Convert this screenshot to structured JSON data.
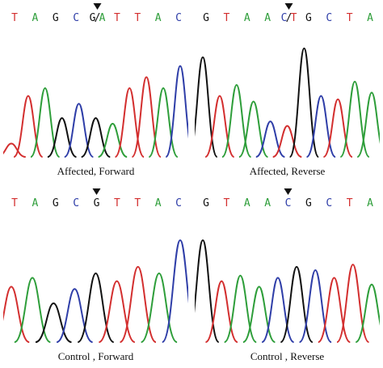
{
  "colors": {
    "A": "#2e9e3a",
    "T": "#d32f2f",
    "G": "#111111",
    "C": "#2f3ea8"
  },
  "panels": [
    {
      "caption": "Affected, Forward",
      "bases": [
        "T",
        "A",
        "G",
        "C",
        "G/A",
        "T",
        "T",
        "A",
        "C"
      ],
      "marker_index": 4,
      "heterozygous": {
        "index": 4,
        "slash": "/"
      },
      "peaks": [
        {
          "base": "T",
          "h": 0.12
        },
        {
          "base": "T",
          "h": 0.55
        },
        {
          "base": "A",
          "h": 0.62
        },
        {
          "base": "G",
          "h": 0.35
        },
        {
          "base": "C",
          "h": 0.48
        },
        {
          "base": "G",
          "h": 0.35
        },
        {
          "base": "A",
          "h": 0.3
        },
        {
          "base": "T",
          "h": 0.62
        },
        {
          "base": "T",
          "h": 0.72
        },
        {
          "base": "A",
          "h": 0.62
        },
        {
          "base": "C",
          "h": 0.82
        }
      ]
    },
    {
      "caption": "Affected, Reverse",
      "bases": [
        "G",
        "T",
        "A",
        "A",
        "C/T",
        "G",
        "C",
        "T",
        "A"
      ],
      "marker_index": 4,
      "heterozygous": {
        "index": 4,
        "slash": "/"
      },
      "peaks": [
        {
          "base": "G",
          "h": 0.9
        },
        {
          "base": "T",
          "h": 0.55
        },
        {
          "base": "A",
          "h": 0.65
        },
        {
          "base": "A",
          "h": 0.5
        },
        {
          "base": "C",
          "h": 0.32
        },
        {
          "base": "T",
          "h": 0.28
        },
        {
          "base": "G",
          "h": 0.98
        },
        {
          "base": "C",
          "h": 0.55
        },
        {
          "base": "T",
          "h": 0.52
        },
        {
          "base": "A",
          "h": 0.68
        },
        {
          "base": "A",
          "h": 0.58
        }
      ]
    },
    {
      "caption": "Control , Forward",
      "bases": [
        "T",
        "A",
        "G",
        "C",
        "G",
        "T",
        "T",
        "A",
        "C"
      ],
      "marker_index": 4,
      "peaks": [
        {
          "base": "T",
          "h": 0.5
        },
        {
          "base": "A",
          "h": 0.58
        },
        {
          "base": "G",
          "h": 0.35
        },
        {
          "base": "C",
          "h": 0.48
        },
        {
          "base": "G",
          "h": 0.62
        },
        {
          "base": "T",
          "h": 0.55
        },
        {
          "base": "T",
          "h": 0.68
        },
        {
          "base": "A",
          "h": 0.62
        },
        {
          "base": "C",
          "h": 0.92
        }
      ]
    },
    {
      "caption": "Control , Reverse",
      "bases": [
        "G",
        "T",
        "A",
        "A",
        "C",
        "G",
        "C",
        "T",
        "A"
      ],
      "marker_index": 4,
      "peaks": [
        {
          "base": "G",
          "h": 0.92
        },
        {
          "base": "T",
          "h": 0.55
        },
        {
          "base": "A",
          "h": 0.6
        },
        {
          "base": "A",
          "h": 0.5
        },
        {
          "base": "C",
          "h": 0.58
        },
        {
          "base": "G",
          "h": 0.68
        },
        {
          "base": "C",
          "h": 0.65
        },
        {
          "base": "T",
          "h": 0.58
        },
        {
          "base": "T",
          "h": 0.7
        },
        {
          "base": "A",
          "h": 0.52
        }
      ]
    }
  ]
}
